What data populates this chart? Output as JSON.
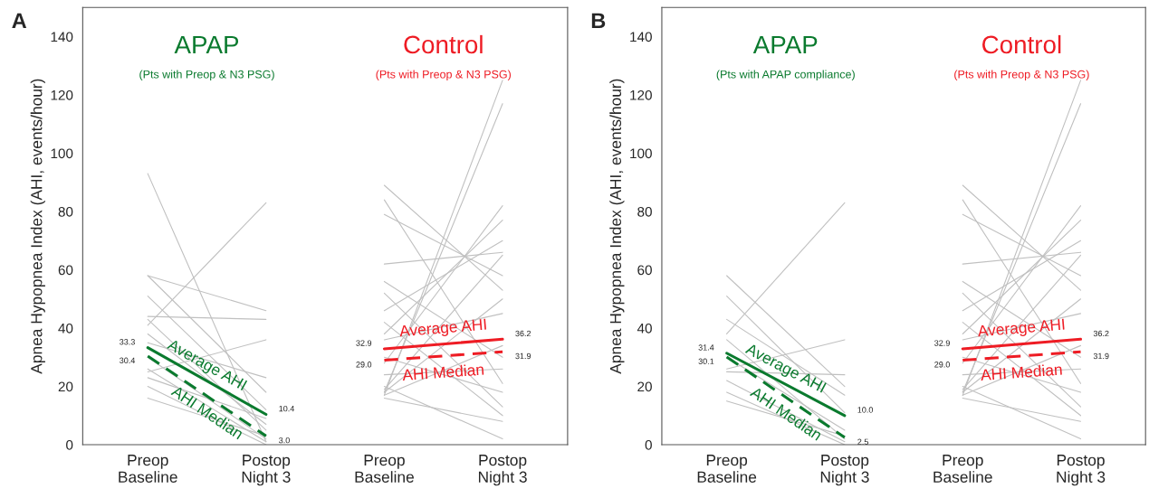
{
  "chart_data": [
    {
      "type": "line",
      "ylabel": "Apnea Hypopnea Index (AHI, events/hour)",
      "categories": [
        "Preop\nBaseline",
        "Postop\nNight 3",
        "Preop\nBaseline",
        "Postop\nNight 3"
      ],
      "ylim": [
        0,
        150
      ],
      "yticks": [
        0,
        20,
        40,
        60,
        80,
        100,
        120,
        140
      ],
      "grid": false,
      "legend": false,
      "annotations": [
        "A",
        "APAP",
        "(Pts with Preop & N3 PSG)",
        "Control",
        "(Pts with Preop & N3 PSG)"
      ],
      "series": [
        {
          "color": "#c0c0c0",
          "values": [
            93,
            1,
            null,
            null
          ]
        },
        {
          "color": "#c0c0c0",
          "values": [
            41,
            83,
            null,
            null
          ]
        },
        {
          "color": "#c0c0c0",
          "values": [
            58,
            46,
            null,
            null
          ]
        },
        {
          "color": "#c0c0c0",
          "values": [
            58,
            18,
            null,
            null
          ]
        },
        {
          "color": "#c0c0c0",
          "values": [
            51,
            12,
            null,
            null
          ]
        },
        {
          "color": "#c0c0c0",
          "values": [
            44,
            43,
            null,
            null
          ]
        },
        {
          "color": "#c0c0c0",
          "values": [
            25,
            36,
            null,
            null
          ]
        },
        {
          "color": "#c0c0c0",
          "values": [
            35,
            23,
            null,
            null
          ]
        },
        {
          "color": "#c0c0c0",
          "values": [
            43,
            5,
            null,
            null
          ]
        },
        {
          "color": "#c0c0c0",
          "values": [
            30,
            2,
            null,
            null
          ]
        },
        {
          "color": "#c0c0c0",
          "values": [
            26,
            1,
            null,
            null
          ]
        },
        {
          "color": "#c0c0c0",
          "values": [
            20,
            0,
            null,
            null
          ]
        },
        {
          "color": "#c0c0c0",
          "values": [
            16,
            3,
            null,
            null
          ]
        },
        {
          "color": "#c0c0c0",
          "values": [
            38,
            7,
            null,
            null
          ]
        },
        {
          "color": "#c0c0c0",
          "values": [
            23,
            9,
            null,
            null
          ]
        },
        {
          "color": "#c0c0c0",
          "values": [
            null,
            null,
            17,
            125
          ]
        },
        {
          "color": "#c0c0c0",
          "values": [
            null,
            null,
            18,
            117
          ]
        },
        {
          "color": "#c0c0c0",
          "values": [
            null,
            null,
            89,
            53
          ]
        },
        {
          "color": "#c0c0c0",
          "values": [
            null,
            null,
            84,
            21
          ]
        },
        {
          "color": "#c0c0c0",
          "values": [
            null,
            null,
            79,
            58
          ]
        },
        {
          "color": "#c0c0c0",
          "values": [
            null,
            null,
            62,
            66
          ]
        },
        {
          "color": "#c0c0c0",
          "values": [
            null,
            null,
            56,
            30
          ]
        },
        {
          "color": "#c0c0c0",
          "values": [
            null,
            null,
            52,
            13
          ]
        },
        {
          "color": "#c0c0c0",
          "values": [
            null,
            null,
            46,
            70
          ]
        },
        {
          "color": "#c0c0c0",
          "values": [
            null,
            null,
            38,
            77
          ]
        },
        {
          "color": "#c0c0c0",
          "values": [
            null,
            null,
            28,
            82
          ]
        },
        {
          "color": "#c0c0c0",
          "values": [
            null,
            null,
            18,
            50
          ]
        },
        {
          "color": "#c0c0c0",
          "values": [
            null,
            null,
            16,
            8
          ]
        },
        {
          "color": "#c0c0c0",
          "values": [
            null,
            null,
            20,
            2
          ]
        },
        {
          "color": "#c0c0c0",
          "values": [
            null,
            null,
            36,
            45
          ]
        },
        {
          "color": "#c0c0c0",
          "values": [
            null,
            null,
            24,
            26
          ]
        },
        {
          "color": "#c0c0c0",
          "values": [
            null,
            null,
            19,
            65
          ]
        },
        {
          "color": "#c0c0c0",
          "values": [
            null,
            null,
            42,
            10
          ]
        },
        {
          "color": "#c0c0c0",
          "values": [
            null,
            null,
            17,
            34
          ]
        },
        {
          "color": "#c0c0c0",
          "values": [
            null,
            null,
            30,
            18
          ]
        },
        {
          "name": "Average AHI",
          "color": "#0a7a2e",
          "line_style": "solid",
          "values": [
            33.3,
            10.4,
            null,
            null
          ],
          "value_labels": [
            "33.3",
            "10.4",
            null,
            null
          ]
        },
        {
          "name": "AHI Median",
          "color": "#0a7a2e",
          "line_style": "dashed",
          "values": [
            30.4,
            3.0,
            null,
            null
          ],
          "value_labels": [
            "30.4",
            "3.0",
            null,
            null
          ]
        },
        {
          "name": "Average AHI",
          "color": "#ee1c24",
          "line_style": "solid",
          "values": [
            null,
            null,
            32.9,
            36.2
          ],
          "value_labels": [
            null,
            null,
            "32.9",
            "36.2"
          ]
        },
        {
          "name": "AHI Median",
          "color": "#ee1c24",
          "line_style": "dashed",
          "values": [
            null,
            null,
            29.0,
            31.9
          ],
          "value_labels": [
            null,
            null,
            "29.0",
            "31.9"
          ]
        }
      ]
    },
    {
      "type": "line",
      "ylabel": "Apnea Hypopnea Index (AHI, events/hour)",
      "categories": [
        "Preop\nBaseline",
        "Postop\nNight 3",
        "Preop\nBaseline",
        "Postop\nNight 3"
      ],
      "ylim": [
        0,
        150
      ],
      "yticks": [
        0,
        20,
        40,
        60,
        80,
        100,
        120,
        140
      ],
      "grid": false,
      "legend": false,
      "annotations": [
        "B",
        "APAP",
        "(Pts with APAP compliance)",
        "Control",
        "(Pts with Preop & N3 PSG)"
      ],
      "series": [
        {
          "color": "#c0c0c0",
          "values": [
            38,
            83,
            null,
            null
          ]
        },
        {
          "color": "#c0c0c0",
          "values": [
            58,
            20,
            null,
            null
          ]
        },
        {
          "color": "#c0c0c0",
          "values": [
            51,
            11,
            null,
            null
          ]
        },
        {
          "color": "#c0c0c0",
          "values": [
            43,
            17,
            null,
            null
          ]
        },
        {
          "color": "#c0c0c0",
          "values": [
            26,
            36,
            null,
            null
          ]
        },
        {
          "color": "#c0c0c0",
          "values": [
            25,
            24,
            null,
            null
          ]
        },
        {
          "color": "#c0c0c0",
          "values": [
            36,
            2,
            null,
            null
          ]
        },
        {
          "color": "#c0c0c0",
          "values": [
            22,
            1,
            null,
            null
          ]
        },
        {
          "color": "#c0c0c0",
          "values": [
            18,
            0,
            null,
            null
          ]
        },
        {
          "color": "#c0c0c0",
          "values": [
            15,
            3,
            null,
            null
          ]
        },
        {
          "color": "#c0c0c0",
          "values": [
            30,
            5,
            null,
            null
          ]
        },
        {
          "color": "#c0c0c0",
          "values": [
            null,
            null,
            17,
            125
          ]
        },
        {
          "color": "#c0c0c0",
          "values": [
            null,
            null,
            18,
            117
          ]
        },
        {
          "color": "#c0c0c0",
          "values": [
            null,
            null,
            89,
            53
          ]
        },
        {
          "color": "#c0c0c0",
          "values": [
            null,
            null,
            84,
            21
          ]
        },
        {
          "color": "#c0c0c0",
          "values": [
            null,
            null,
            79,
            58
          ]
        },
        {
          "color": "#c0c0c0",
          "values": [
            null,
            null,
            62,
            66
          ]
        },
        {
          "color": "#c0c0c0",
          "values": [
            null,
            null,
            56,
            30
          ]
        },
        {
          "color": "#c0c0c0",
          "values": [
            null,
            null,
            52,
            13
          ]
        },
        {
          "color": "#c0c0c0",
          "values": [
            null,
            null,
            46,
            70
          ]
        },
        {
          "color": "#c0c0c0",
          "values": [
            null,
            null,
            38,
            77
          ]
        },
        {
          "color": "#c0c0c0",
          "values": [
            null,
            null,
            28,
            82
          ]
        },
        {
          "color": "#c0c0c0",
          "values": [
            null,
            null,
            18,
            50
          ]
        },
        {
          "color": "#c0c0c0",
          "values": [
            null,
            null,
            16,
            8
          ]
        },
        {
          "color": "#c0c0c0",
          "values": [
            null,
            null,
            20,
            2
          ]
        },
        {
          "color": "#c0c0c0",
          "values": [
            null,
            null,
            36,
            45
          ]
        },
        {
          "color": "#c0c0c0",
          "values": [
            null,
            null,
            24,
            26
          ]
        },
        {
          "color": "#c0c0c0",
          "values": [
            null,
            null,
            19,
            65
          ]
        },
        {
          "color": "#c0c0c0",
          "values": [
            null,
            null,
            42,
            10
          ]
        },
        {
          "color": "#c0c0c0",
          "values": [
            null,
            null,
            17,
            34
          ]
        },
        {
          "color": "#c0c0c0",
          "values": [
            null,
            null,
            30,
            18
          ]
        },
        {
          "name": "Average AHI",
          "color": "#0a7a2e",
          "line_style": "solid",
          "values": [
            31.4,
            10.0,
            null,
            null
          ],
          "value_labels": [
            "31.4",
            "10.0",
            null,
            null
          ]
        },
        {
          "name": "AHI Median",
          "color": "#0a7a2e",
          "line_style": "dashed",
          "values": [
            30.1,
            2.5,
            null,
            null
          ],
          "value_labels": [
            "30.1",
            "2.5",
            null,
            null
          ]
        },
        {
          "name": "Average AHI",
          "color": "#ee1c24",
          "line_style": "solid",
          "values": [
            null,
            null,
            32.9,
            36.2
          ],
          "value_labels": [
            null,
            null,
            "32.9",
            "36.2"
          ]
        },
        {
          "name": "AHI Median",
          "color": "#ee1c24",
          "line_style": "dashed",
          "values": [
            null,
            null,
            29.0,
            31.9
          ],
          "value_labels": [
            null,
            null,
            "29.0",
            "31.9"
          ]
        }
      ]
    }
  ]
}
